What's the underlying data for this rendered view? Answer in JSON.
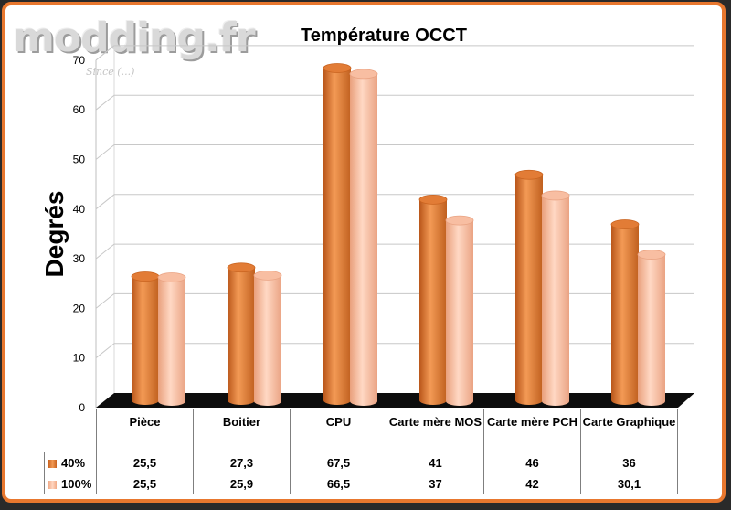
{
  "watermark": {
    "brand": "modding.fr",
    "tagline": "Since (...)"
  },
  "chart_data": {
    "type": "bar",
    "title": "Température OCCT",
    "ylabel": "Degrés",
    "xlabel": "",
    "ylim": [
      0,
      70
    ],
    "yticks": [
      0,
      10,
      20,
      30,
      40,
      50,
      60,
      70
    ],
    "categories": [
      "Pièce",
      "Boitier",
      "CPU",
      "Carte mère MOS",
      "Carte mère PCH",
      "Carte Graphique"
    ],
    "series": [
      {
        "name": "40%",
        "values": [
          25.5,
          27.3,
          67.5,
          41,
          46,
          36
        ],
        "labels": [
          "25,5",
          "27,3",
          "67,5",
          "41",
          "46",
          "36"
        ],
        "color": "#e07a33"
      },
      {
        "name": "100%",
        "values": [
          25.5,
          25.9,
          66.5,
          37,
          42,
          30.1
        ],
        "labels": [
          "25,5",
          "25,9",
          "66,5",
          "37",
          "42",
          "30,1"
        ],
        "color": "#f6b495"
      }
    ],
    "grid": true,
    "legend": "data-table"
  }
}
